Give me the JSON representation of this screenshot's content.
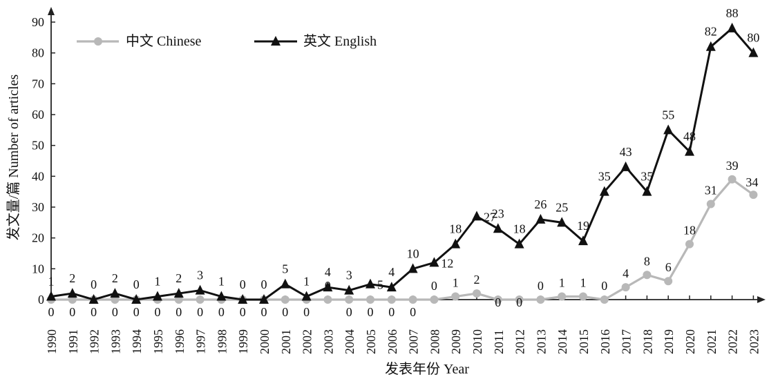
{
  "chart_data": {
    "type": "line",
    "xlabel": "发表年份 Year",
    "ylabel": "发文量/篇 Number of articles",
    "ylim": [
      0,
      90
    ],
    "yticks": [
      0,
      10,
      20,
      30,
      40,
      50,
      60,
      70,
      80,
      90
    ],
    "grid": false,
    "legend_position": "top-left",
    "categories": [
      "1990",
      "1991",
      "1992",
      "1993",
      "1994",
      "1995",
      "1996",
      "1997",
      "1998",
      "1999",
      "2000",
      "2001",
      "2002",
      "2003",
      "2004",
      "2005",
      "2006",
      "2007",
      "2008",
      "2009",
      "2010",
      "2011",
      "2012",
      "2013",
      "2014",
      "2015",
      "2016",
      "2017",
      "2018",
      "2019",
      "2020",
      "2021",
      "2022",
      "2023"
    ],
    "series": [
      {
        "name": "中文 Chinese",
        "color": "#b8b8b8",
        "marker": "circle",
        "values": [
          0,
          0,
          0,
          0,
          0,
          0,
          0,
          0,
          0,
          0,
          0,
          0,
          0,
          0,
          0,
          0,
          0,
          0,
          0,
          1,
          2,
          0,
          0,
          0,
          1,
          1,
          0,
          4,
          8,
          6,
          18,
          31,
          39,
          34
        ]
      },
      {
        "name": "英文 English",
        "color": "#111111",
        "marker": "triangle",
        "values": [
          1,
          2,
          0,
          2,
          0,
          1,
          2,
          3,
          1,
          0,
          0,
          5,
          1,
          4,
          3,
          5,
          4,
          10,
          12,
          18,
          27,
          23,
          18,
          26,
          25,
          19,
          35,
          43,
          35,
          55,
          48,
          82,
          88,
          80
        ]
      }
    ]
  }
}
